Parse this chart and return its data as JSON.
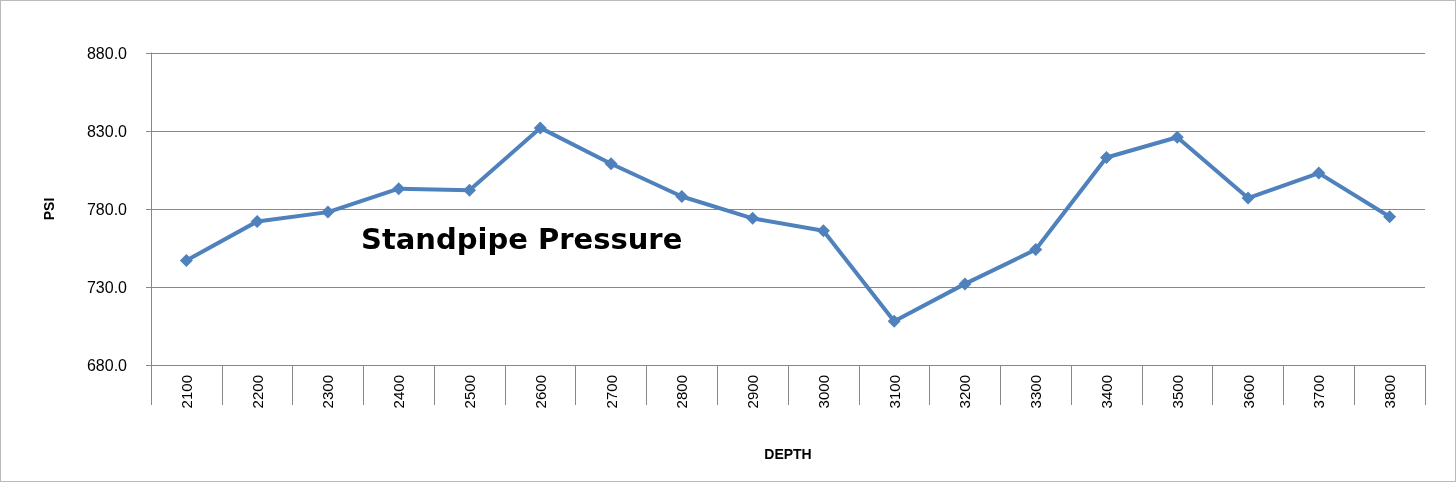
{
  "chart_data": {
    "type": "line",
    "title": "Standpipe Pressure",
    "xlabel": "DEPTH",
    "ylabel": "PSI",
    "categories": [
      "2100",
      "2200",
      "2300",
      "2400",
      "2500",
      "2600",
      "2700",
      "2800",
      "2900",
      "3000",
      "3100",
      "3200",
      "3300",
      "3400",
      "3500",
      "3600",
      "3700",
      "3800"
    ],
    "series": [
      {
        "color": "#4f81bd",
        "values": [
          747,
          772,
          778,
          793,
          792,
          832,
          809,
          788,
          774,
          766,
          708,
          732,
          754,
          813,
          826,
          787,
          803,
          775
        ]
      }
    ],
    "ylim": [
      680,
      880
    ],
    "yticks": [
      {
        "value": 680,
        "label": "680.0"
      },
      {
        "value": 730,
        "label": "730.0"
      },
      {
        "value": 780,
        "label": "780.0"
      },
      {
        "value": 830,
        "label": "830.0"
      },
      {
        "value": 880,
        "label": "880.0"
      }
    ],
    "grid": "y",
    "marker": "diamond",
    "line_style": "solid"
  }
}
